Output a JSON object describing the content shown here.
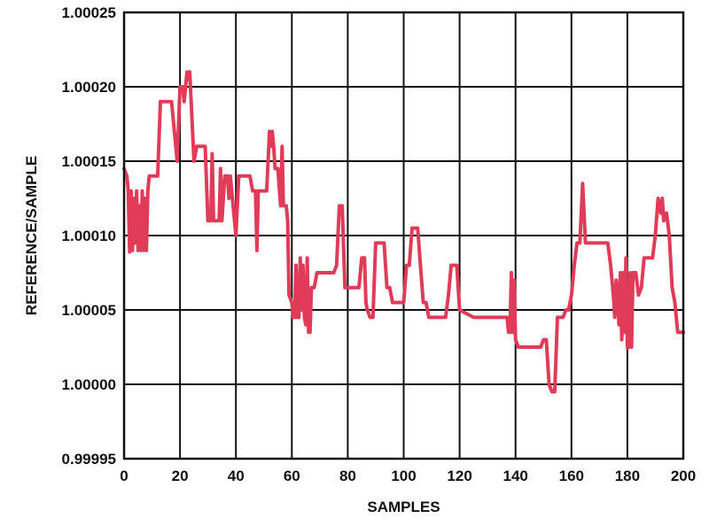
{
  "chart_data": {
    "type": "line",
    "xlabel": "SAMPLES",
    "ylabel": "REFERENCE/SAMPLE",
    "xlim": [
      0,
      200
    ],
    "ylim": [
      0.99995,
      1.00025
    ],
    "grid": true,
    "x_ticks": [
      "0",
      "20",
      "40",
      "60",
      "80",
      "100",
      "120",
      "140",
      "160",
      "180",
      "200"
    ],
    "y_ticks": [
      "1.00025",
      "1.00020",
      "1.00015",
      "1.00010",
      "1.00005",
      "1.00000",
      "0.99995"
    ],
    "series": [
      {
        "color": "#e03c5a",
        "x": [
          0,
          1,
          1.5,
          2,
          2.5,
          3,
          3.5,
          4,
          4.5,
          5,
          5.5,
          6,
          6.5,
          7,
          7.5,
          8,
          8.5,
          9,
          10,
          12,
          13,
          16,
          17,
          19,
          20,
          21,
          21.5,
          22,
          22.5,
          23,
          23.5,
          24,
          25,
          26,
          27,
          28,
          29,
          30,
          31,
          31.5,
          32,
          33,
          34,
          34.5,
          35,
          36,
          37,
          37.5,
          38,
          39,
          40,
          41,
          42,
          43,
          44,
          45,
          46,
          46.5,
          47,
          47.5,
          48,
          49,
          50,
          51,
          52,
          52.5,
          53,
          53.5,
          54,
          55,
          56,
          56.5,
          57,
          58,
          58.5,
          59,
          60,
          60.5,
          61,
          61.5,
          62,
          62.5,
          63,
          63.5,
          64,
          64.5,
          65,
          65.5,
          66,
          66.5,
          67,
          68,
          69,
          70,
          71,
          72,
          73,
          74,
          75,
          76,
          77,
          78,
          79,
          80,
          81,
          82,
          83,
          84,
          85,
          86,
          86.5,
          87,
          88,
          89,
          90,
          91,
          92,
          93,
          94,
          95,
          96,
          97,
          98,
          99,
          100,
          101,
          102,
          103,
          104,
          105,
          106,
          107,
          108,
          109,
          110,
          111,
          112,
          113,
          114,
          115,
          116,
          117,
          118,
          119,
          120,
          125,
          130,
          135,
          136,
          137,
          137.5,
          138,
          138.5,
          139,
          139.5,
          140,
          141,
          142,
          143,
          144,
          145,
          146,
          147,
          148,
          149,
          150,
          151,
          152,
          153,
          154,
          155,
          156,
          157,
          158,
          159,
          160,
          161,
          162,
          163,
          164,
          165,
          166,
          167,
          168,
          169,
          170,
          171,
          172,
          173,
          174,
          175,
          175.5,
          176,
          176.5,
          177,
          177.5,
          178,
          178.5,
          179,
          179.5,
          180,
          180.5,
          181,
          181.5,
          182,
          183,
          184,
          185,
          186,
          187,
          188,
          189,
          190,
          191,
          192,
          192.5,
          193,
          193.5,
          194,
          195,
          196,
          197,
          198,
          199,
          200
        ],
        "values": [
          1.000145,
          1.00014,
          1.00013,
          1.000089,
          1.00013,
          1.00009,
          1.000125,
          1.000095,
          1.00013,
          1.00009,
          1.00012,
          1.00009,
          1.00013,
          1.00009,
          1.000125,
          1.00009,
          1.00013,
          1.00014,
          1.00014,
          1.00014,
          1.00019,
          1.00019,
          1.00019,
          1.00015,
          1.0002,
          1.0002,
          1.00019,
          1.0002,
          1.00021,
          1.000205,
          1.00021,
          1.00019,
          1.00015,
          1.00016,
          1.00016,
          1.00016,
          1.00016,
          1.00011,
          1.00011,
          1.000155,
          1.00011,
          1.00011,
          1.00011,
          1.000145,
          1.00011,
          1.00014,
          1.00014,
          1.000125,
          1.00014,
          1.00012,
          1.0001,
          1.00014,
          1.00014,
          1.00014,
          1.00014,
          1.00014,
          1.00013,
          1.00013,
          1.00013,
          1.00009,
          1.00013,
          1.00013,
          1.00013,
          1.00013,
          1.00017,
          1.00016,
          1.00017,
          1.00016,
          1.000145,
          1.000145,
          1.00012,
          1.00016,
          1.00012,
          1.00012,
          1.00011,
          1.00006,
          1.000055,
          1.000045,
          1.000045,
          1.00008,
          1.000045,
          1.000045,
          1.000085,
          1.00005,
          1.00008,
          1.000045,
          1.00004,
          1.000085,
          1.000035,
          1.000035,
          1.000065,
          1.000065,
          1.000075,
          1.000075,
          1.000075,
          1.000075,
          1.000075,
          1.000075,
          1.000075,
          1.00008,
          1.00012,
          1.00012,
          1.000065,
          1.000065,
          1.000065,
          1.000065,
          1.000065,
          1.000065,
          1.000085,
          1.000085,
          1.000055,
          1.00005,
          1.000045,
          1.000045,
          1.000095,
          1.000095,
          1.000095,
          1.000095,
          1.000065,
          1.000065,
          1.000055,
          1.000055,
          1.000055,
          1.000055,
          1.000055,
          1.00008,
          1.00008,
          1.000105,
          1.000105,
          1.000105,
          1.00008,
          1.000055,
          1.000055,
          1.000045,
          1.000045,
          1.000045,
          1.000045,
          1.000045,
          1.000045,
          1.000045,
          1.00006,
          1.00008,
          1.00008,
          1.00008,
          1.00005,
          1.000045,
          1.000045,
          1.000045,
          1.000045,
          1.000045,
          1.000035,
          1.000035,
          1.000075,
          1.000035,
          1.00007,
          1.00003,
          1.000025,
          1.000025,
          1.000025,
          1.000025,
          1.000025,
          1.000025,
          1.000025,
          1.000025,
          1.000025,
          1.00003,
          1.00003,
          1.0,
          0.999995,
          0.999995,
          1.000045,
          1.000045,
          1.000045,
          1.00005,
          1.00005,
          1.00006,
          1.00008,
          1.000095,
          1.000095,
          1.000135,
          1.000095,
          1.000095,
          1.000095,
          1.000095,
          1.000095,
          1.000095,
          1.000095,
          1.000095,
          1.000095,
          1.00008,
          1.00006,
          1.000045,
          1.00007,
          1.00006,
          1.00004,
          1.000075,
          1.00003,
          1.000075,
          1.000035,
          1.000085,
          1.000025,
          1.000025,
          1.000075,
          1.000025,
          1.000075,
          1.000075,
          1.00006,
          1.000065,
          1.000085,
          1.000085,
          1.000085,
          1.000085,
          1.0001,
          1.000125,
          1.000115,
          1.000125,
          1.00011,
          1.000115,
          1.000115,
          1.0001,
          1.000065,
          1.000055,
          1.000035,
          1.000035,
          1.000035
        ]
      }
    ]
  }
}
